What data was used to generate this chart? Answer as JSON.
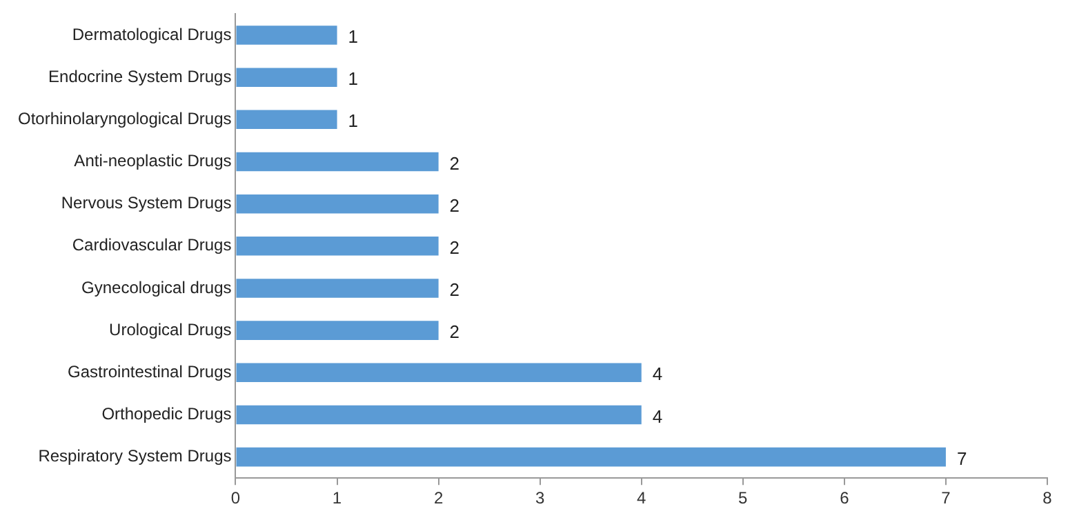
{
  "chart_data": {
    "type": "bar",
    "orientation": "horizontal",
    "categories": [
      "Dermatological Drugs",
      "Endocrine System Drugs",
      "Otorhinolaryngological Drugs",
      "Anti-neoplastic Drugs",
      "Nervous System Drugs",
      "Cardiovascular Drugs",
      "Gynecological drugs",
      "Urological Drugs",
      "Gastrointestinal Drugs",
      "Orthopedic Drugs",
      "Respiratory System Drugs"
    ],
    "values": [
      1,
      1,
      1,
      2,
      2,
      2,
      2,
      2,
      4,
      4,
      7
    ],
    "color": "#5b9bd5",
    "xlim": [
      0,
      8
    ],
    "xticks": [
      0,
      1,
      2,
      3,
      4,
      5,
      6,
      7,
      8
    ],
    "data_labels": true,
    "grid": false,
    "legend": false
  }
}
